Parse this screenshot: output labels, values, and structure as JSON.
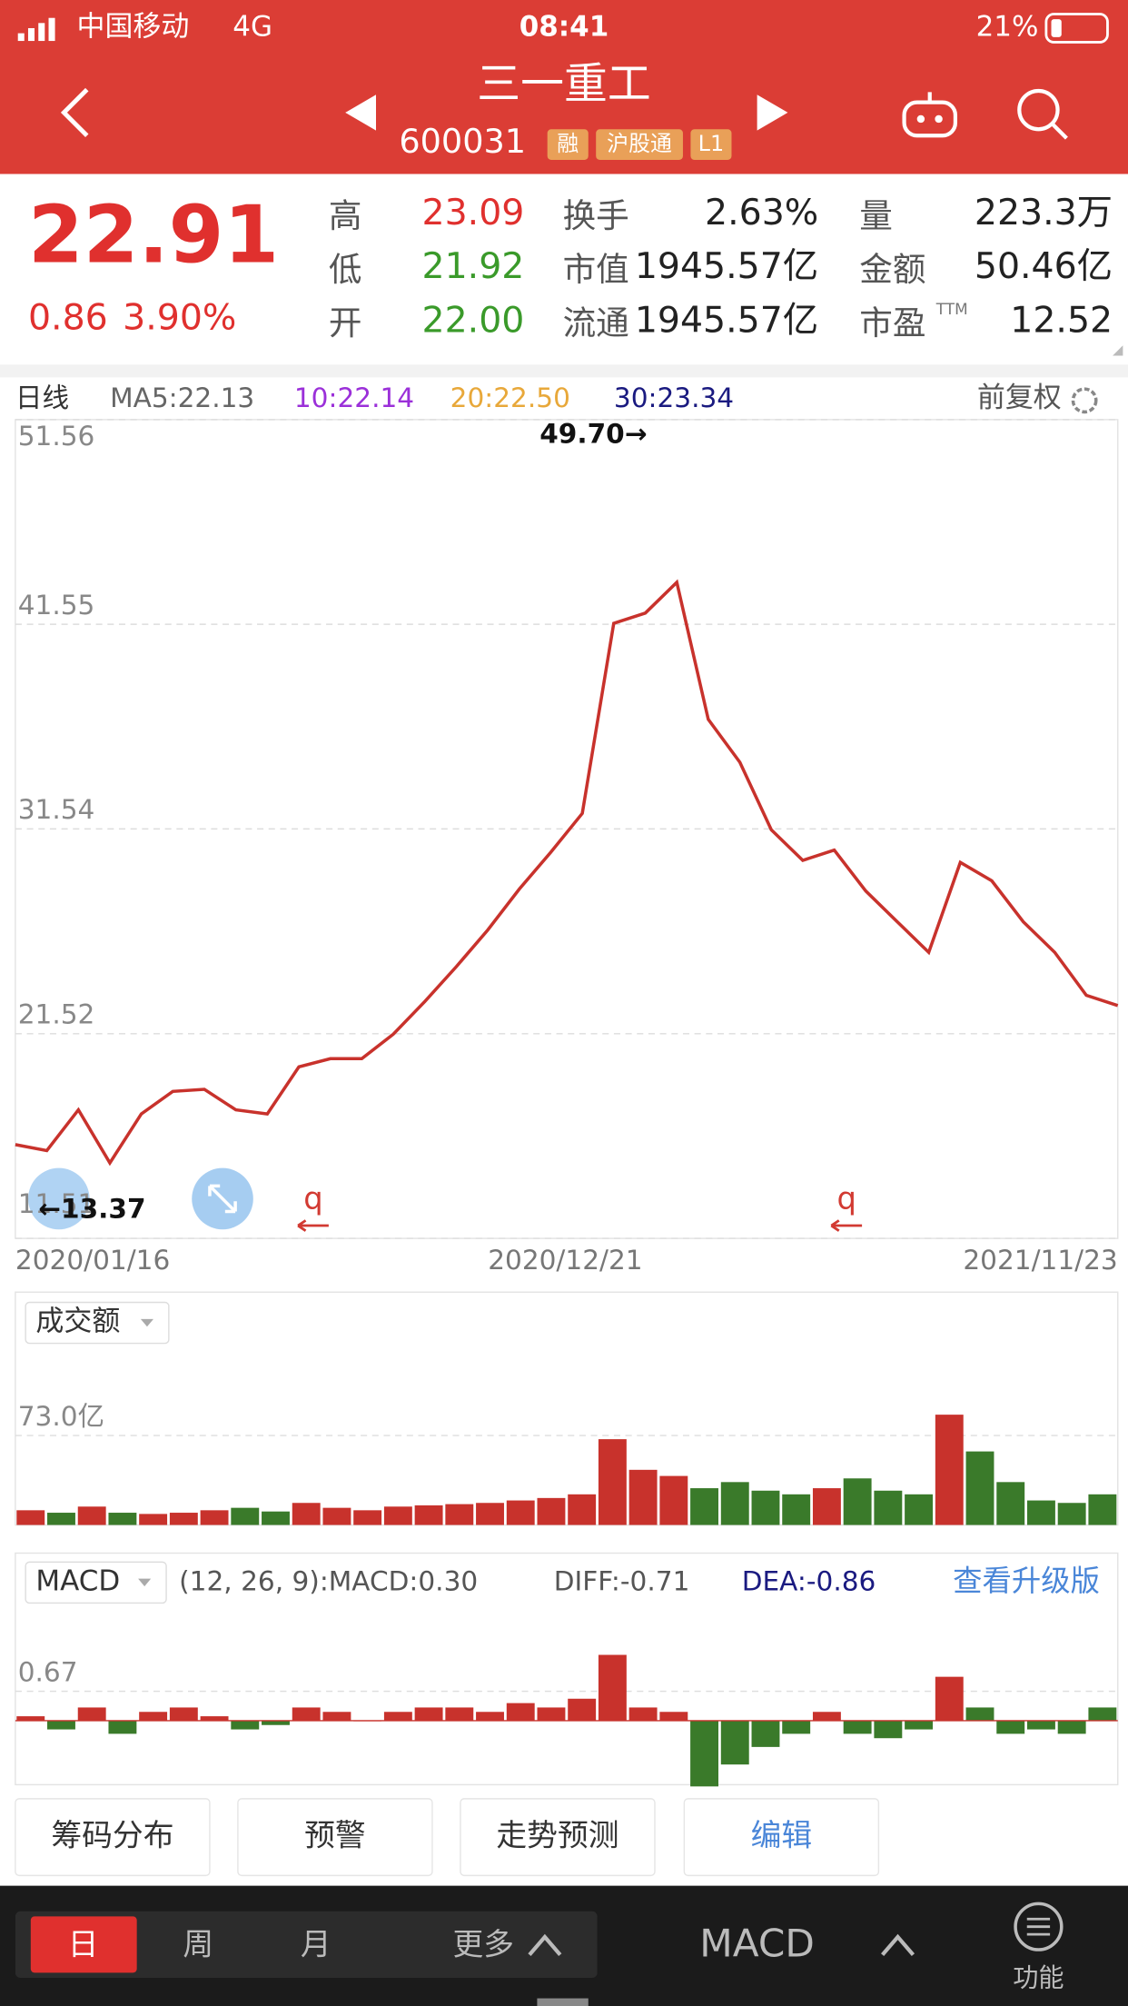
{
  "status": {
    "carrier": "中国移动",
    "network": "4G",
    "time": "08:41",
    "battery": "21%"
  },
  "header": {
    "title": "三一重工",
    "code": "600031",
    "badges": [
      "融",
      "沪股通",
      "L1"
    ]
  },
  "quote": {
    "price": "22.91",
    "change": "0.86",
    "pct": "3.90%",
    "fields": [
      {
        "label": "高",
        "value": "23.09"
      },
      {
        "label": "低",
        "value": "21.92"
      },
      {
        "label": "开",
        "value": "22.00"
      },
      {
        "label": "换手",
        "value": "2.63%"
      },
      {
        "label": "市值",
        "value": "1945.57亿"
      },
      {
        "label": "流通",
        "value": "1945.57亿"
      },
      {
        "label": "量",
        "value": "223.3万"
      },
      {
        "label": "金额",
        "value": "50.46亿"
      },
      {
        "label": "市盈",
        "sup": "TTM",
        "value": "12.52"
      }
    ]
  },
  "ma_header": {
    "period": "日线",
    "items": [
      {
        "text": "MA5:22.13",
        "color": "#666666"
      },
      {
        "text": "10:22.14",
        "color": "#9b30d9"
      },
      {
        "text": "20:22.50",
        "color": "#e8a83a"
      },
      {
        "text": "30:23.34",
        "color": "#1a1a80"
      }
    ],
    "adjust": "前复权"
  },
  "chart_data": [
    {
      "type": "line",
      "color": "#c8322c",
      "ylim": [
        11.51,
        51.56
      ],
      "yticks": [
        51.56,
        41.55,
        31.54,
        21.52,
        11.51
      ],
      "grid": true,
      "values": [
        16.1,
        15.8,
        17.8,
        15.2,
        17.6,
        18.7,
        18.8,
        17.8,
        17.6,
        19.9,
        20.3,
        20.3,
        21.5,
        23.1,
        24.8,
        26.6,
        28.6,
        30.4,
        32.3,
        41.6,
        42.1,
        43.6,
        36.9,
        34.8,
        31.5,
        30.0,
        30.5,
        28.5,
        27.0,
        25.5,
        29.9,
        29.0,
        27.0,
        25.5,
        23.4,
        22.9
      ],
      "x_labels": [
        "2020/01/16",
        "2020/12/21",
        "2021/11/23"
      ],
      "annotations": [
        "49.70→",
        "←13.37"
      ],
      "markers": [
        "q",
        "q"
      ]
    },
    {
      "type": "bar",
      "selector": "成交额",
      "up_color": "#c8322c",
      "down_color": "#3a7a2a",
      "ylim": [
        0,
        190
      ],
      "yticks": [
        {
          "value": 73,
          "label": "73.0亿"
        }
      ],
      "values": [
        12,
        10,
        15,
        10,
        9,
        10,
        12,
        14,
        11,
        18,
        14,
        12,
        15,
        16,
        17,
        18,
        20,
        22,
        25,
        70,
        45,
        40,
        30,
        35,
        28,
        25,
        30,
        38,
        28,
        25,
        90,
        60,
        35,
        20,
        18,
        25
      ]
    },
    {
      "type": "bar",
      "selector": "MACD",
      "params": "(12, 26, 9):MACD:0.30",
      "diff": "DIFF:-0.71",
      "dea": "DEA:-0.86",
      "upgrade": "查看升级版",
      "up_color": "#c8322c",
      "down_color": "#3a7a2a",
      "ylim": [
        -1.46,
        3.82
      ],
      "yticks": [
        0.67
      ],
      "values": [
        0.1,
        -0.2,
        0.3,
        -0.3,
        0.2,
        0.3,
        0.1,
        -0.2,
        -0.1,
        0.3,
        0.2,
        0.0,
        0.2,
        0.3,
        0.3,
        0.2,
        0.4,
        0.3,
        0.5,
        1.5,
        0.3,
        0.2,
        -1.5,
        -1.0,
        -0.6,
        -0.3,
        0.2,
        -0.3,
        -0.4,
        -0.2,
        1.0,
        0.3,
        -0.3,
        -0.2,
        -0.3,
        0.3
      ]
    }
  ],
  "buttons": [
    "筹码分布",
    "预警",
    "走势预测",
    "编辑"
  ],
  "bottom": {
    "tabs": [
      "日",
      "周",
      "月",
      "更多"
    ],
    "indicator": "MACD",
    "function": "功能"
  }
}
